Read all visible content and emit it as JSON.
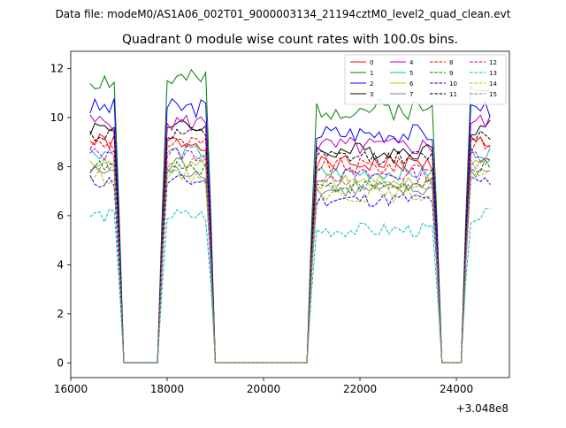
{
  "chart_data": {
    "type": "line",
    "suptitle": "Data file: modeM0/AS1A06_002T01_9000003134_21194cztM0_level2_quad_clean.evt",
    "title": "Quadrant 0 module wise count rates with 100.0s bins.",
    "xlabel": "",
    "ylabel": "",
    "x_offset_label": "+3.048e8",
    "xlim": [
      16000,
      25100
    ],
    "ylim": [
      -0.6,
      12.7
    ],
    "x_ticks": [
      16000,
      18000,
      20000,
      22000,
      24000
    ],
    "x_tick_labels": [
      "16000",
      "18000",
      "20000",
      "22000",
      "24000"
    ],
    "y_ticks": [
      0,
      2,
      4,
      6,
      8,
      10,
      12
    ],
    "y_tick_labels": [
      "0",
      "2",
      "4",
      "6",
      "8",
      "10",
      "12"
    ],
    "legend_position": "top-right",
    "x_start": 16400,
    "x_step": 100,
    "gaps": [
      [
        17050,
        17850
      ],
      [
        18950,
        20950
      ],
      [
        23650,
        24150
      ]
    ],
    "series": [
      {
        "name": "0",
        "color": "#ff0000",
        "dash": "solid",
        "base": 9.0,
        "amp": 0.35,
        "seed": 1
      },
      {
        "name": "1",
        "color": "#008000",
        "dash": "solid",
        "base": 11.5,
        "amp": 0.45,
        "seed": 2
      },
      {
        "name": "2",
        "color": "#0000ff",
        "dash": "solid",
        "base": 10.4,
        "amp": 0.4,
        "seed": 3
      },
      {
        "name": "3",
        "color": "#000000",
        "dash": "solid",
        "base": 9.6,
        "amp": 0.35,
        "seed": 4
      },
      {
        "name": "4",
        "color": "#bf00bf",
        "dash": "solid",
        "base": 9.8,
        "amp": 0.4,
        "seed": 5
      },
      {
        "name": "5",
        "color": "#00bfbf",
        "dash": "solid",
        "base": 8.6,
        "amp": 0.3,
        "seed": 6
      },
      {
        "name": "6",
        "color": "#bfbf00",
        "dash": "solid",
        "base": 8.2,
        "amp": 0.3,
        "seed": 7
      },
      {
        "name": "7",
        "color": "#808080",
        "dash": "solid",
        "base": 7.8,
        "amp": 0.3,
        "seed": 8
      },
      {
        "name": "8",
        "color": "#ff0000",
        "dash": "dashed",
        "base": 8.9,
        "amp": 0.35,
        "seed": 9
      },
      {
        "name": "9",
        "color": "#008000",
        "dash": "dashed",
        "base": 8.0,
        "amp": 0.3,
        "seed": 10
      },
      {
        "name": "10",
        "color": "#0000ff",
        "dash": "dashed",
        "base": 7.4,
        "amp": 0.3,
        "seed": 11
      },
      {
        "name": "11",
        "color": "#000000",
        "dash": "dashed",
        "base": 9.3,
        "amp": 0.3,
        "seed": 12
      },
      {
        "name": "12",
        "color": "#bf00bf",
        "dash": "dashed",
        "base": 8.5,
        "amp": 0.3,
        "seed": 13
      },
      {
        "name": "13",
        "color": "#00bfbf",
        "dash": "dashed",
        "base": 6.0,
        "amp": 0.3,
        "seed": 14
      },
      {
        "name": "14",
        "color": "#bfbf00",
        "dash": "dashed",
        "base": 7.6,
        "amp": 0.3,
        "seed": 15
      },
      {
        "name": "15",
        "color": "#808080",
        "dash": "dashed",
        "base": 8.1,
        "amp": 0.3,
        "seed": 16
      }
    ]
  }
}
